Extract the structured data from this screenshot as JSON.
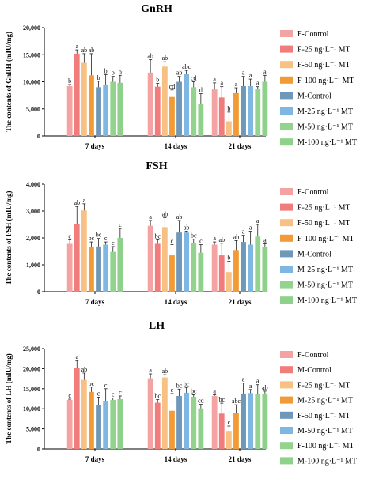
{
  "chart_data": [
    {
      "type": "bar",
      "title": "GnRH",
      "ylabel": "The contents of GnRH (mIU/mg)",
      "ylim": [
        0,
        20000
      ],
      "yticks": [
        "0",
        "5,000",
        "10,000",
        "15,000",
        "20,000"
      ],
      "categories": [
        "7 days",
        "14 days",
        "21 days"
      ],
      "series": [
        {
          "name": "F-Control",
          "color": "#f4a3a3",
          "values": [
            9200,
            11700,
            8600
          ],
          "errors": [
            300,
            2400,
            1200
          ],
          "letters": [
            "b",
            "ab",
            "a"
          ]
        },
        {
          "name": "F-25 ng·L⁻¹ MT",
          "color": "#f07c7c",
          "values": [
            15200,
            9100,
            7100
          ],
          "errors": [
            700,
            600,
            2000
          ],
          "letters": [
            "a",
            "b",
            "a"
          ]
        },
        {
          "name": "F-50 ng·L⁻¹ MT",
          "color": "#f7c184",
          "values": [
            13500,
            12800,
            2700
          ],
          "errors": [
            1700,
            900,
            1700
          ],
          "letters": [
            "ab",
            "ab",
            "b"
          ]
        },
        {
          "name": "F-100 ng·L⁻¹ MT",
          "color": "#f29a35",
          "values": [
            11200,
            7200,
            7900
          ],
          "errors": [
            4000,
            1300,
            1000
          ],
          "letters": [
            "ab",
            "cd",
            "a"
          ]
        },
        {
          "name": "M-Control",
          "color": "#6e97b8",
          "values": [
            9000,
            10000,
            9200
          ],
          "errors": [
            1100,
            1000,
            1800
          ],
          "letters": [
            "b",
            "ab",
            "a"
          ]
        },
        {
          "name": "M-25 ng·L⁻¹ MT",
          "color": "#7fb7e3",
          "values": [
            9500,
            11500,
            9200
          ],
          "errors": [
            1800,
            600,
            1300
          ],
          "letters": [
            "b",
            "abc",
            "a"
          ]
        },
        {
          "name": "M-50 ng·L⁻¹ MT",
          "color": "#93d38d",
          "values": [
            10000,
            9000,
            8700
          ],
          "errors": [
            1000,
            1000,
            400
          ],
          "letters": [
            "b",
            "cd",
            "a"
          ]
        },
        {
          "name": "M-100 ng·L⁻¹ MT",
          "color": "#8ed18a",
          "values": [
            9800,
            6000,
            10000
          ],
          "errors": [
            1400,
            1800,
            1200
          ],
          "letters": [
            "b",
            "d",
            "a"
          ]
        }
      ],
      "legend_position": "right"
    },
    {
      "type": "bar",
      "title": "FSH",
      "ylabel": "The contents of FSH (mIU/mg)",
      "ylim": [
        0,
        4000
      ],
      "yticks": [
        "0",
        "1,000",
        "2,000",
        "3,000",
        "4,000"
      ],
      "categories": [
        "7 days",
        "14 days",
        "21 days"
      ],
      "series": [
        {
          "name": "F-Control",
          "color": "#f4a3a3",
          "values": [
            1780,
            2450,
            1750
          ],
          "errors": [
            150,
            200,
            100
          ],
          "letters": [
            "c",
            "a",
            "a"
          ]
        },
        {
          "name": "F-25 ng·L⁻¹ MT",
          "color": "#f07c7c",
          "values": [
            2520,
            1780,
            1350
          ],
          "errors": [
            650,
            150,
            450
          ],
          "letters": [
            "ab",
            "bc",
            "ab"
          ]
        },
        {
          "name": "F-50 ng·L⁻¹ MT",
          "color": "#f7c184",
          "values": [
            3020,
            2400,
            730
          ],
          "errors": [
            250,
            350,
            400
          ],
          "letters": [
            "a",
            "ab",
            "b"
          ]
        },
        {
          "name": "F-100 ng·L⁻¹ MT",
          "color": "#f29a35",
          "values": [
            1650,
            1350,
            1550
          ],
          "errors": [
            200,
            400,
            350
          ],
          "letters": [
            "bc",
            "c",
            "ab"
          ]
        },
        {
          "name": "M-Control",
          "color": "#6e97b8",
          "values": [
            1680,
            2200,
            1850
          ],
          "errors": [
            300,
            450,
            250
          ],
          "letters": [
            "bc",
            "ab",
            "a"
          ]
        },
        {
          "name": "M-25 ng·L⁻¹ MT",
          "color": "#7fb7e3",
          "values": [
            1750,
            2200,
            1750
          ],
          "errors": [
            100,
            50,
            500
          ],
          "letters": [
            "c",
            "ab",
            "a"
          ]
        },
        {
          "name": "M-50 ng·L⁻¹ MT",
          "color": "#93d38d",
          "values": [
            1480,
            1800,
            2050
          ],
          "errors": [
            200,
            150,
            450
          ],
          "letters": [
            "c",
            "bc",
            "a"
          ]
        },
        {
          "name": "M-100 ng·L⁻¹ MT",
          "color": "#8ed18a",
          "values": [
            2000,
            1450,
            1680
          ],
          "errors": [
            350,
            300,
            100
          ],
          "letters": [
            "c",
            "c",
            "a"
          ]
        }
      ],
      "legend_position": "right"
    },
    {
      "type": "bar",
      "title": "LH",
      "ylabel": "The contents of LH (mIU/mg)",
      "ylim": [
        0,
        25000
      ],
      "yticks": [
        "0",
        "5,000",
        "10,000",
        "15,000",
        "20,000",
        "25,000"
      ],
      "categories": [
        "7 days",
        "14 days",
        "21 days"
      ],
      "series": [
        {
          "name": "F-Control",
          "color": "#f4a3a3",
          "values": [
            12200,
            17600,
            13200
          ],
          "errors": [
            200,
            1100,
            300
          ],
          "letters": [
            "c",
            "a",
            "a"
          ]
        },
        {
          "name": "M-Control",
          "color": "#f07c7c",
          "values": [
            20200,
            11500,
            8800
          ],
          "errors": [
            1800,
            800,
            2600
          ],
          "letters": [
            "a",
            "bc",
            "bc"
          ]
        },
        {
          "name": "F-25 ng·L⁻¹ MT",
          "color": "#f7c184",
          "values": [
            17200,
            17800,
            4500
          ],
          "errors": [
            1700,
            700,
            1200
          ],
          "letters": [
            "ab",
            "ab",
            "c"
          ]
        },
        {
          "name": "M-25 ng·L⁻¹ MT",
          "color": "#f29a35",
          "values": [
            14200,
            9500,
            9000
          ],
          "errors": [
            1200,
            4300,
            2000
          ],
          "letters": [
            "bc",
            "c",
            "abc"
          ]
        },
        {
          "name": "F-50 ng·L⁻¹ MT",
          "color": "#6e97b8",
          "values": [
            10900,
            13200,
            13800
          ],
          "errors": [
            2000,
            1700,
            2600
          ],
          "letters": [
            "c",
            "bc",
            "a"
          ]
        },
        {
          "name": "M-50 ng·L⁻¹ MT",
          "color": "#7fb7e3",
          "values": [
            12000,
            14000,
            13900
          ],
          "errors": [
            3000,
            1300,
            900
          ],
          "letters": [
            "c",
            "bc",
            "a"
          ]
        },
        {
          "name": "F-100 ng·L⁻¹ MT",
          "color": "#93d38d",
          "values": [
            12200,
            13000,
            13700
          ],
          "errors": [
            500,
            500,
            2300
          ],
          "letters": [
            "c",
            "bc",
            "a"
          ]
        },
        {
          "name": "M-100 ng·L⁻¹ MT",
          "color": "#8ed18a",
          "values": [
            12400,
            10100,
            13800
          ],
          "errors": [
            800,
            1000,
            600
          ],
          "letters": [
            "c",
            "cd",
            "ab"
          ]
        }
      ],
      "legend_position": "right"
    }
  ]
}
